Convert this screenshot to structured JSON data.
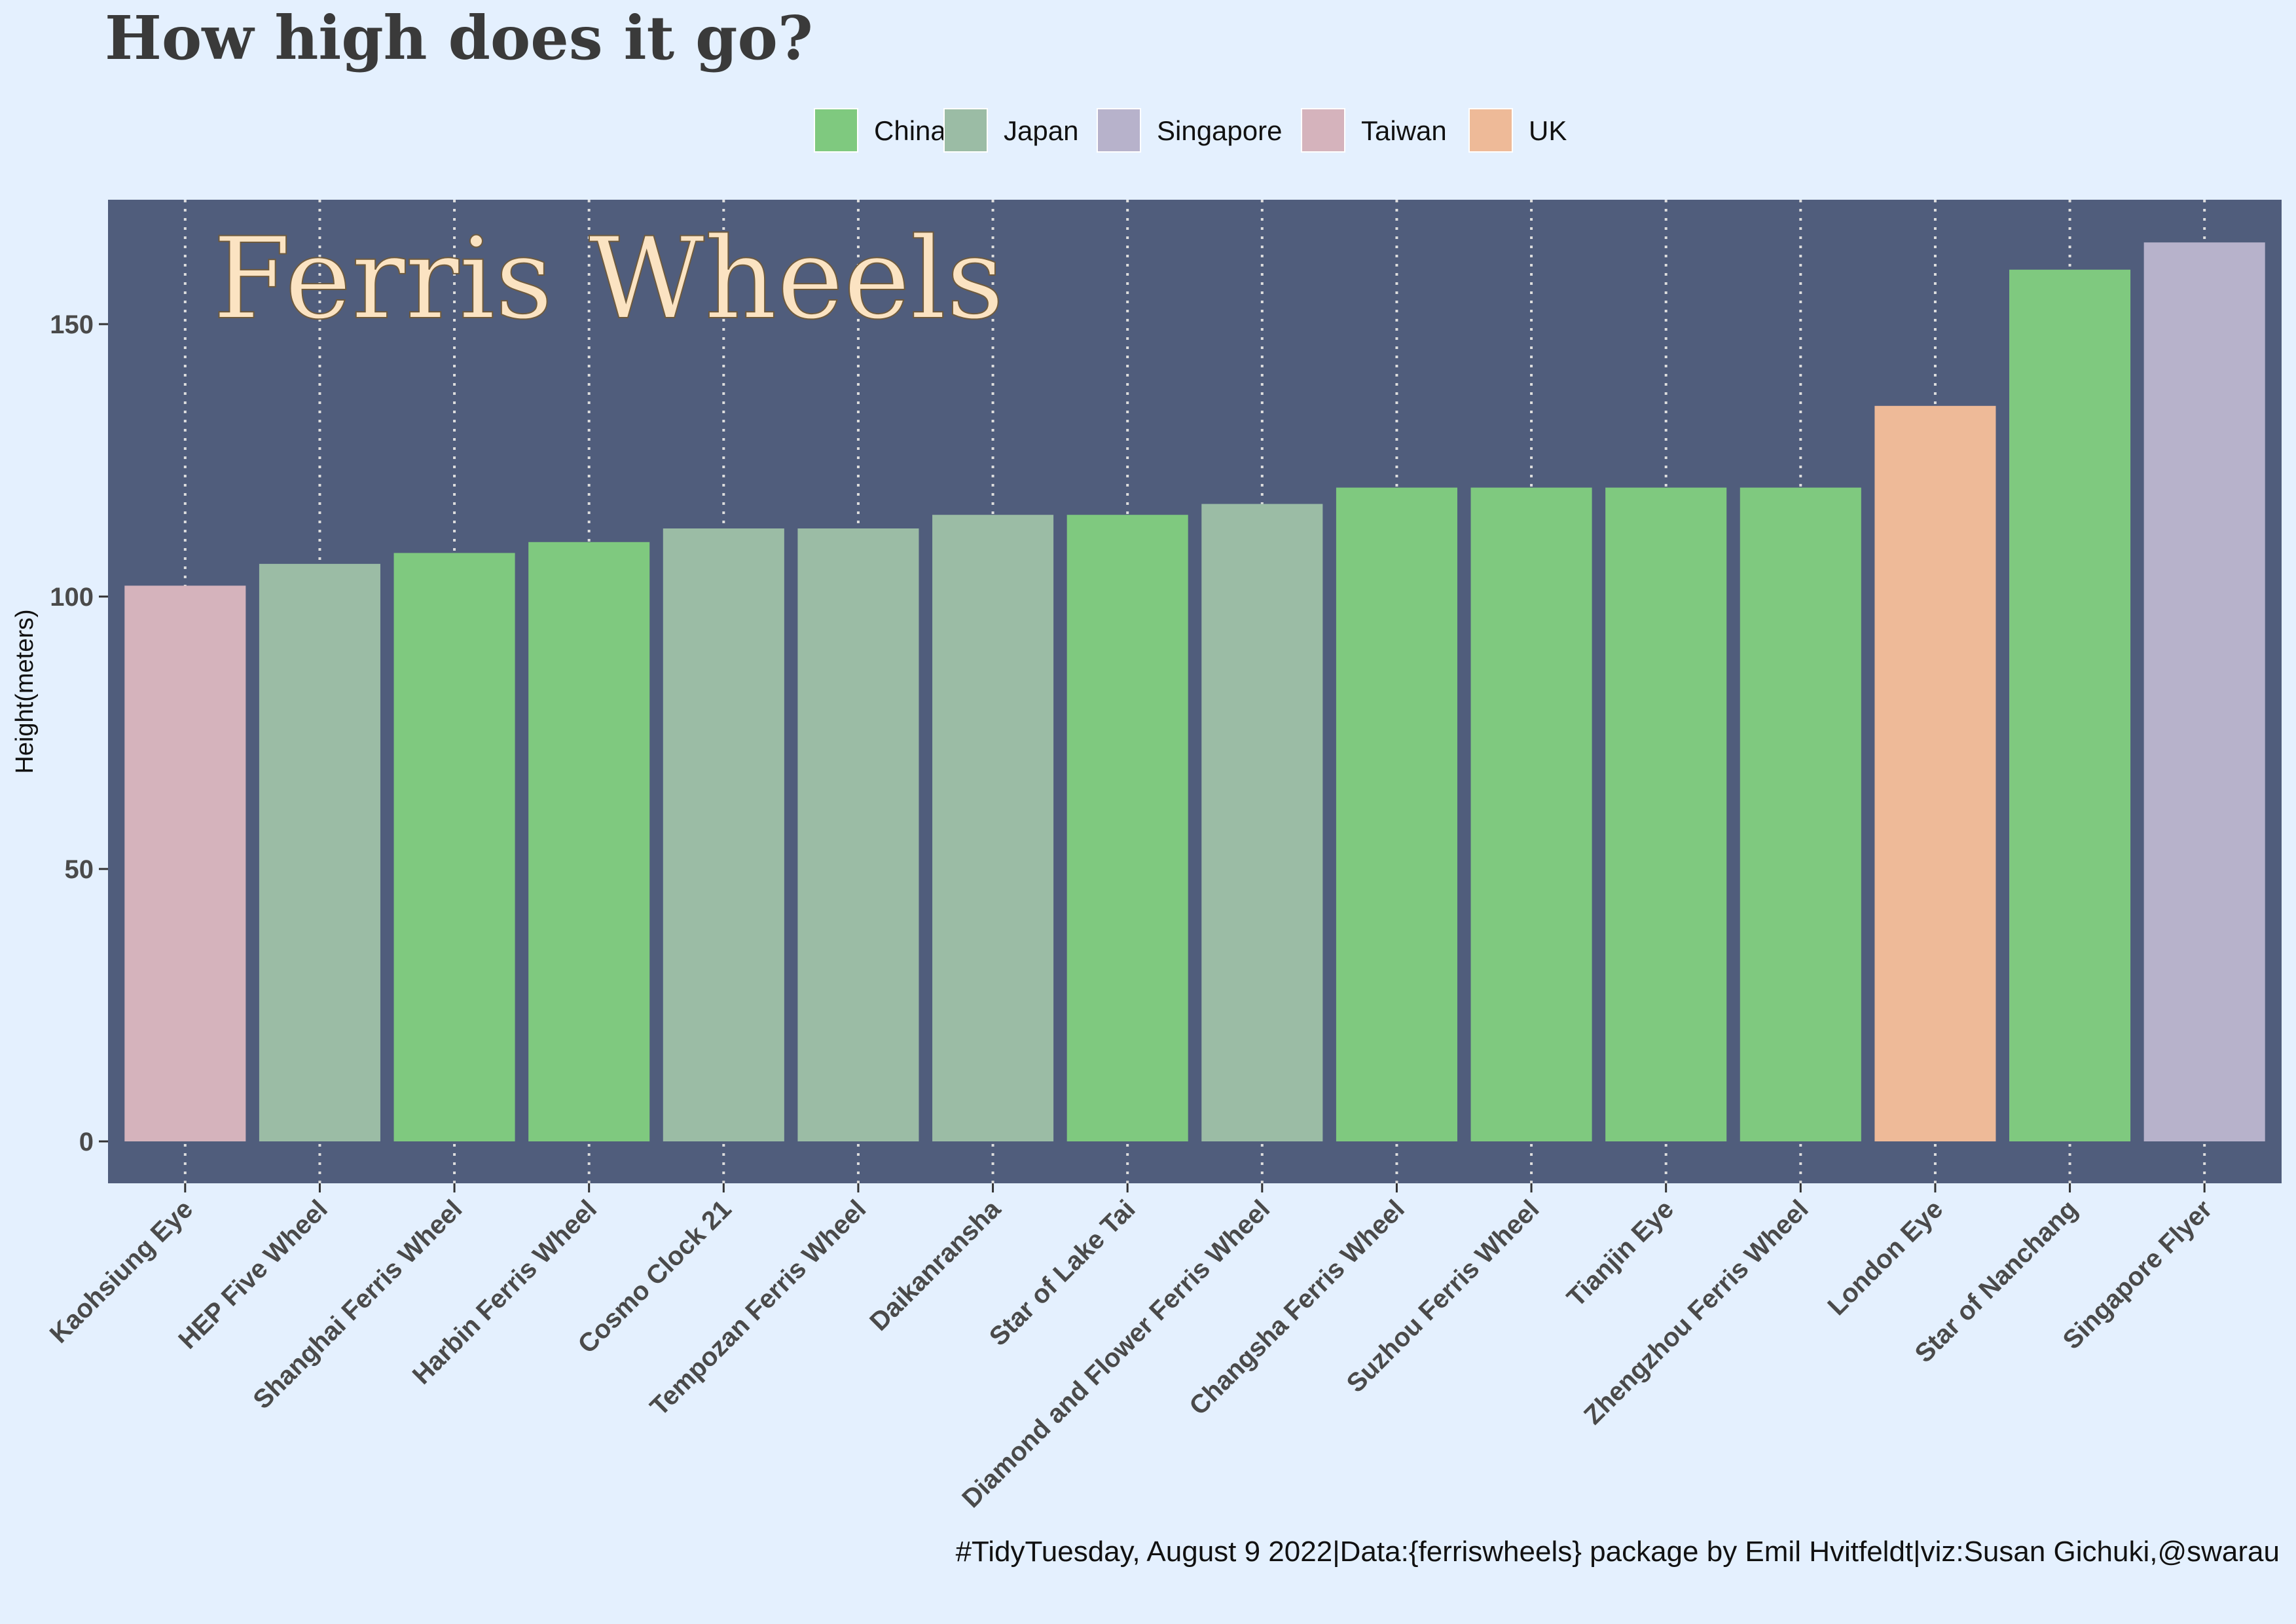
{
  "page": {
    "title": "How high does it go?",
    "caption": "#TidyTuesday, August 9 2022|Data:{ferriswheels} package by Emil Hvitfeldt|viz:Susan Gichuki,@swarau"
  },
  "chart_data": {
    "type": "bar",
    "inner_title": "Ferris Wheels",
    "ylabel": "Height(meters)",
    "xlabel": "",
    "ylim": [
      0,
      173
    ],
    "y_ticks": [
      0,
      50,
      100,
      150
    ],
    "legend_placement": "top",
    "grid": {
      "vertical_dotted": true,
      "horizontal": false
    },
    "colors": {
      "background": "#e4f0fe",
      "panel": "#505d7c",
      "grid": "#dddddd",
      "China": "#7fc97f",
      "Japan": "#9bbca5",
      "Singapore": "#b7b2cb",
      "Taiwan": "#d5b3bc",
      "UK": "#eeba98"
    },
    "legend": [
      {
        "name": "China",
        "color": "#7fc97f"
      },
      {
        "name": "Japan",
        "color": "#9bbca5"
      },
      {
        "name": "Singapore",
        "color": "#b7b2cb"
      },
      {
        "name": "Taiwan",
        "color": "#d5b3bc"
      },
      {
        "name": "UK",
        "color": "#eeba98"
      }
    ],
    "bars": [
      {
        "name": "Kaohsiung Eye",
        "value": 102,
        "country": "Taiwan"
      },
      {
        "name": "HEP Five Wheel",
        "value": 106,
        "country": "Japan"
      },
      {
        "name": "Shanghai Ferris Wheel",
        "value": 108,
        "country": "China"
      },
      {
        "name": "Harbin Ferris Wheel",
        "value": 110,
        "country": "China"
      },
      {
        "name": "Cosmo Clock 21",
        "value": 112.5,
        "country": "Japan"
      },
      {
        "name": "Tempozan Ferris Wheel",
        "value": 112.5,
        "country": "Japan"
      },
      {
        "name": "Daikanransha",
        "value": 115,
        "country": "Japan"
      },
      {
        "name": "Star of Lake Tai",
        "value": 115,
        "country": "China"
      },
      {
        "name": "Diamond and Flower Ferris Wheel",
        "value": 117,
        "country": "Japan"
      },
      {
        "name": "Changsha Ferris Wheel",
        "value": 120,
        "country": "China"
      },
      {
        "name": "Suzhou Ferris Wheel",
        "value": 120,
        "country": "China"
      },
      {
        "name": "Tianjin Eye",
        "value": 120,
        "country": "China"
      },
      {
        "name": "Zhengzhou Ferris Wheel",
        "value": 120,
        "country": "China"
      },
      {
        "name": "London Eye",
        "value": 135,
        "country": "UK"
      },
      {
        "name": "Star of Nanchang",
        "value": 160,
        "country": "China"
      },
      {
        "name": "Singapore Flyer",
        "value": 165,
        "country": "Singapore"
      }
    ]
  }
}
